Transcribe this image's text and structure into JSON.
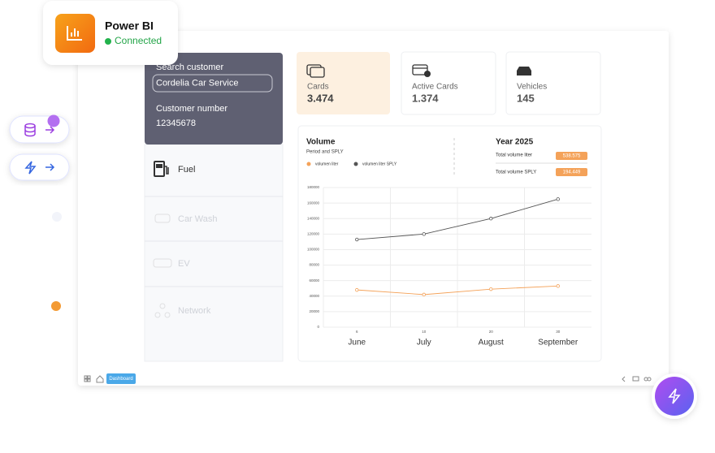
{
  "badge": {
    "title": "Power BI",
    "status": "Connected"
  },
  "search": {
    "label": "Search customer",
    "value": "Cordelia Car Service",
    "number_label": "Customer number",
    "number": "12345678"
  },
  "menu": [
    "Fuel",
    "Car Wash",
    "EV",
    "Network"
  ],
  "stats": [
    {
      "label": "Cards",
      "value": "3.474"
    },
    {
      "label": "Active Cards",
      "value": "1.374"
    },
    {
      "label": "Vehicles",
      "value": "145"
    }
  ],
  "summary": {
    "title": "Year 2025",
    "rows": [
      {
        "label": "Total volume liter",
        "value": "538.575"
      },
      {
        "label": "Total volume SPLY",
        "value": "194.449"
      }
    ]
  },
  "footer": {
    "tab": "Dashboard"
  },
  "chart_data": {
    "type": "line",
    "title": "Volume",
    "subtitle": "Period and SPLY",
    "categories": [
      "June",
      "July",
      "August",
      "September"
    ],
    "x_sublabels": [
      "6",
      "10",
      "20",
      "30"
    ],
    "series": [
      {
        "name": "volumen liter",
        "color": "#f4a259",
        "values": [
          48000,
          42000,
          49000,
          53000
        ]
      },
      {
        "name": "volumen liter SPLY",
        "color": "#555555",
        "values": [
          113000,
          120000,
          140000,
          165000
        ]
      }
    ],
    "ylim": [
      0,
      180000
    ],
    "yticks": [
      0,
      20000,
      40000,
      60000,
      80000,
      100000,
      120000,
      140000,
      160000,
      180000
    ],
    "grid": true
  }
}
